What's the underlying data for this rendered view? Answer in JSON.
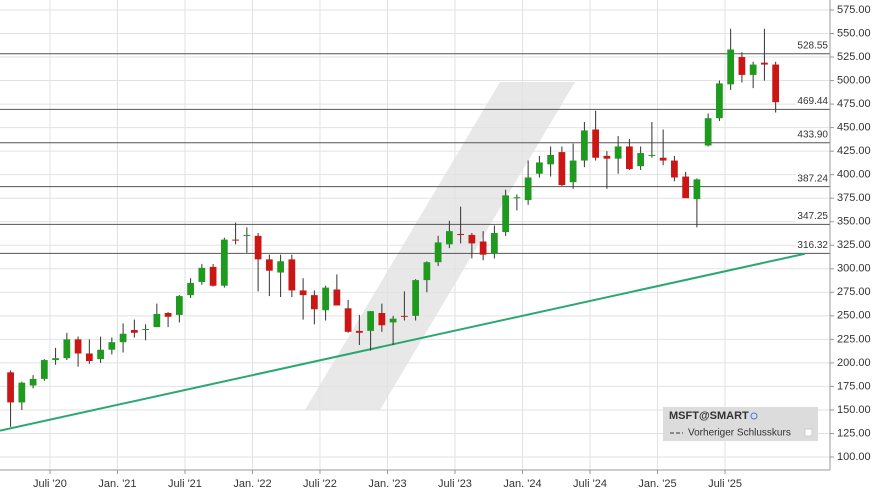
{
  "chart_data": {
    "type": "candlestick",
    "series": [
      {
        "name": "MSFT@SMART",
        "up_color": "#1e9b1e",
        "down_color": "#cc1515",
        "x": [
          2.5,
          3.5,
          4.5,
          5.5,
          6.5,
          7.5,
          8.5,
          9.5,
          10.5,
          11.5,
          12.5,
          13.5,
          14.5,
          15.5,
          16.5,
          17.5,
          18.5,
          19.5,
          20.5,
          21.5,
          22.5,
          23.5,
          24.5,
          25.5,
          26.5,
          27.5,
          28.5,
          29.5,
          30.5,
          31.5,
          32.5,
          33.5,
          34.5,
          35.5,
          36.5,
          37.5,
          38.5,
          39.5,
          40.5,
          41.5,
          42.5,
          43.5,
          44.5,
          45.5,
          46.5,
          47.5,
          48.5,
          49.5,
          50.5,
          51.5,
          52.5,
          53.5,
          54.5,
          55.5,
          56.5,
          57.5,
          58.5,
          59.5,
          60.5,
          61.5,
          62.5,
          63.5,
          64.5,
          65.5,
          66.5,
          67.5,
          68.5,
          69.5,
          70.5
        ],
        "open": [
          190,
          158,
          176,
          183,
          203,
          205,
          225,
          210,
          204,
          214,
          222,
          235,
          235,
          238,
          253,
          251,
          272,
          286,
          302,
          282,
          331,
          335,
          335,
          310,
          296,
          310,
          277,
          272,
          256,
          278,
          258,
          234,
          234,
          253,
          243,
          250,
          250,
          288,
          307,
          326,
          337,
          336,
          329,
          316,
          339,
          376,
          373,
          401,
          411,
          424,
          392,
          415,
          448,
          420,
          417,
          430,
          409,
          421,
          418,
          415,
          398,
          374,
          431,
          460,
          496,
          525,
          506,
          519,
          517
        ],
        "high": [
          192,
          180,
          187,
          204,
          216,
          232,
          228,
          225,
          228,
          227,
          242,
          246,
          241,
          263,
          254,
          272,
          290,
          305,
          305,
          333,
          349,
          344,
          338,
          315,
          315,
          315,
          290,
          277,
          282,
          294,
          267,
          251,
          255,
          263,
          250,
          276,
          289,
          308,
          335,
          351,
          366,
          338,
          340,
          346,
          384,
          379,
          415,
          420,
          430,
          430,
          433,
          456,
          468,
          425,
          441,
          438,
          430,
          456,
          448,
          420,
          403,
          396,
          465,
          500,
          555,
          530,
          520,
          555,
          520
        ],
        "low": [
          132,
          150,
          173,
          181,
          198,
          203,
          196,
          199,
          200,
          209,
          211,
          227,
          224,
          238,
          238,
          243,
          269,
          283,
          281,
          280,
          326,
          317,
          276,
          271,
          270,
          270,
          246,
          241,
          245,
          261,
          232,
          219,
          213,
          233,
          219,
          245,
          245,
          275,
          303,
          322,
          327,
          311,
          309,
          311,
          335,
          362,
          368,
          397,
          398,
          388,
          385,
          408,
          415,
          385,
          401,
          405,
          405,
          418,
          410,
          393,
          376,
          344,
          430,
          457,
          490,
          498,
          492,
          500,
          466
        ],
        "close": [
          158,
          179,
          183,
          203,
          205,
          225,
          210,
          202,
          214,
          222,
          231,
          232,
          236,
          252,
          249,
          271,
          285,
          301,
          282,
          331,
          330,
          336,
          310,
          298,
          308,
          277,
          272,
          257,
          280,
          261,
          233,
          232,
          255,
          240,
          247,
          249,
          288,
          307,
          328,
          340,
          336,
          327,
          315,
          338,
          378,
          376,
          397,
          413,
          421,
          389,
          415,
          447,
          418,
          417,
          430,
          406,
          423,
          421,
          415,
          397,
          375,
          395,
          460,
          497,
          533,
          506,
          517,
          517,
          477
        ]
      }
    ],
    "xlim": [
      1.56,
      75.33
    ],
    "ylim": [
      86.2,
      585.6
    ],
    "xticks": [
      {
        "value": 6,
        "label": "Juli '20"
      },
      {
        "value": 12,
        "label": "Jan. '21"
      },
      {
        "value": 18,
        "label": "Juli '21"
      },
      {
        "value": 24,
        "label": "Jan. '22"
      },
      {
        "value": 30,
        "label": "Juli '22"
      },
      {
        "value": 36,
        "label": "Jan. '23"
      },
      {
        "value": 42,
        "label": "Juli '23"
      },
      {
        "value": 48,
        "label": "Jan. '24"
      },
      {
        "value": 54,
        "label": "Juli '24"
      },
      {
        "value": 60,
        "label": "Jan. '25"
      },
      {
        "value": 66,
        "label": "Juli '25"
      }
    ],
    "yticks": [
      {
        "value": 100,
        "label": "100.00"
      },
      {
        "value": 125,
        "label": "125.00"
      },
      {
        "value": 150,
        "label": "150.00"
      },
      {
        "value": 175,
        "label": "175.00"
      },
      {
        "value": 200,
        "label": "200.00"
      },
      {
        "value": 225,
        "label": "225.00"
      },
      {
        "value": 250,
        "label": "250.00"
      },
      {
        "value": 275,
        "label": "275.00"
      },
      {
        "value": 300,
        "label": "300.00"
      },
      {
        "value": 325,
        "label": "325.00"
      },
      {
        "value": 350,
        "label": "350.00"
      },
      {
        "value": 375,
        "label": "375.00"
      },
      {
        "value": 400,
        "label": "400.00"
      },
      {
        "value": 425,
        "label": "425.00"
      },
      {
        "value": 450,
        "label": "450.00"
      },
      {
        "value": 475,
        "label": "475.00"
      },
      {
        "value": 500,
        "label": "500.00"
      },
      {
        "value": 525,
        "label": "525.00"
      },
      {
        "value": 550,
        "label": "550.00"
      },
      {
        "value": 575,
        "label": "575.00"
      }
    ],
    "grid": true,
    "levels": [
      528.55,
      469.44,
      {
        "value": 433.9,
        "label": "433.90"
      },
      387.24,
      347.25,
      316.32
    ],
    "level_color": "#555555",
    "trendline": {
      "x": [
        1.56,
        73.1
      ],
      "values": [
        128,
        316
      ],
      "color": "#2aa872"
    },
    "legend": {
      "previous_close": "Vorheriger Schlusskurs"
    }
  }
}
